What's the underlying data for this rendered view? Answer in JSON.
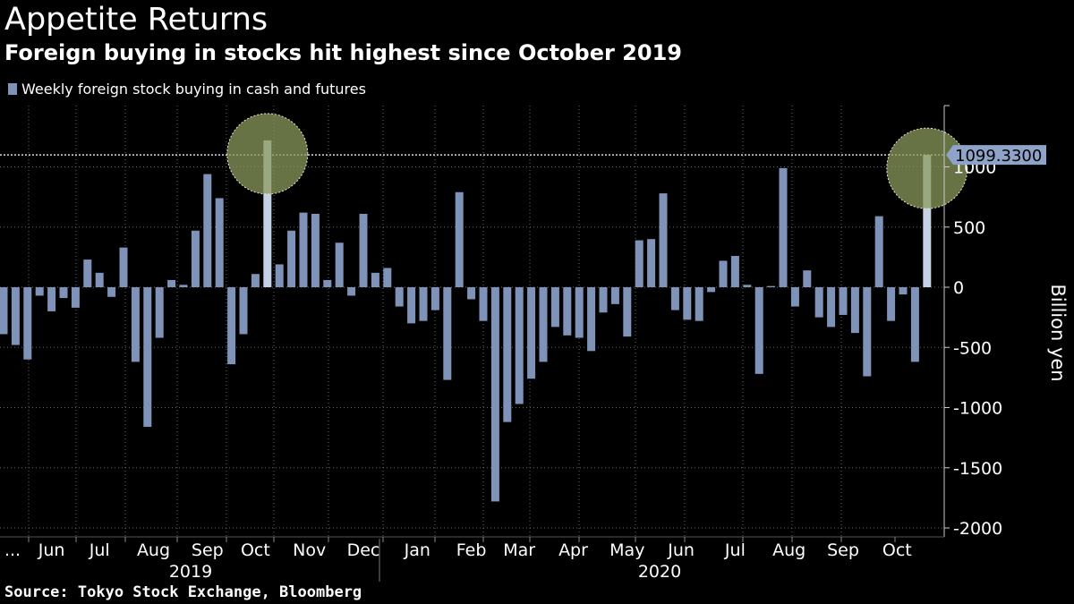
{
  "title": "Appetite Returns",
  "subtitle": "Foreign buying in stocks hit highest since October 2019",
  "source": "Source: Tokyo Stock Exchange, Bloomberg",
  "colors": {
    "bar": "#7f93b9",
    "highlight_bar": "#c5d1e6",
    "circle": "#8a9a5b",
    "grid": "#666666",
    "background": "#000000"
  },
  "chart_data": {
    "type": "bar",
    "series": [
      {
        "name": "Weekly foreign stock buying in cash and futures",
        "values": [
          -390,
          -480,
          -600,
          -70,
          -200,
          -90,
          -170,
          230,
          120,
          -80,
          330,
          -620,
          -1160,
          -420,
          60,
          20,
          470,
          940,
          740,
          -640,
          -390,
          110,
          1220,
          190,
          470,
          620,
          610,
          60,
          370,
          -70,
          610,
          120,
          160,
          -160,
          -300,
          -280,
          -190,
          -770,
          790,
          -100,
          -280,
          -1780,
          -1120,
          -970,
          -760,
          -620,
          -330,
          -400,
          -420,
          -530,
          -210,
          -140,
          -410,
          390,
          400,
          780,
          -190,
          -270,
          -280,
          -40,
          220,
          260,
          20,
          -720,
          10,
          990,
          -160,
          140,
          -250,
          -330,
          -230,
          -380,
          -740,
          590,
          -280,
          -60,
          -620,
          1099.33
        ]
      }
    ],
    "ylabel": "Billion yen",
    "ylim": [
      -2000,
      1400
    ],
    "yticks": [
      1000,
      500,
      0,
      -500,
      -1000,
      -1500,
      -2000
    ],
    "ytick_labels": [
      "1000",
      "500",
      "0",
      "-500",
      "-1000",
      "-1500",
      "-2000"
    ],
    "grid": true,
    "legend_position": "top-left",
    "x_month_labels": [
      {
        "label": "...",
        "week": 0
      },
      {
        "label": "Jun",
        "week": 4
      },
      {
        "label": "Jul",
        "week": 8
      },
      {
        "label": "Aug",
        "week": 12.5
      },
      {
        "label": "Sep",
        "week": 17
      },
      {
        "label": "Oct",
        "week": 21
      },
      {
        "label": "Nov",
        "week": 25.5
      },
      {
        "label": "Dec",
        "week": 30
      },
      {
        "label": "Jan",
        "week": 34.5
      },
      {
        "label": "Feb",
        "week": 39
      },
      {
        "label": "Mar",
        "week": 43
      },
      {
        "label": "Apr",
        "week": 47.5
      },
      {
        "label": "May",
        "week": 52
      },
      {
        "label": "Jun",
        "week": 56.5
      },
      {
        "label": "Jul",
        "week": 61
      },
      {
        "label": "Aug",
        "week": 65.5
      },
      {
        "label": "Sep",
        "week": 70
      },
      {
        "label": "Oct",
        "week": 74.5
      }
    ],
    "x_year_labels": [
      {
        "label": "2019",
        "week": 16
      },
      {
        "label": "2020",
        "week": 55
      }
    ],
    "year_divider_week": 32.5,
    "highlights": [
      {
        "week": 22,
        "value": 1220
      },
      {
        "week": 77,
        "value": 1099.33
      }
    ],
    "reference_line": {
      "value": 1099.33,
      "label": "1099.3300"
    }
  }
}
